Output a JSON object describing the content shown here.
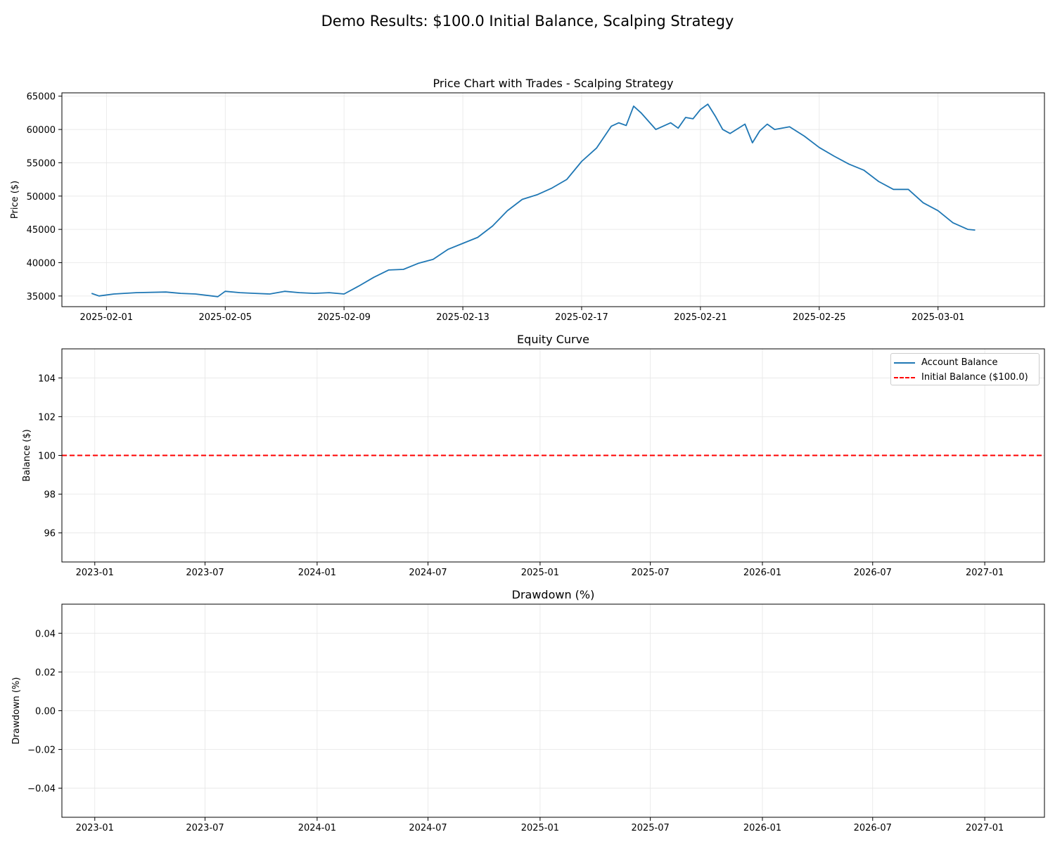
{
  "figure": {
    "suptitle": "Demo Results: $100.0 Initial Balance, Scalping Strategy"
  },
  "colors": {
    "series_blue": "#1f77b4",
    "initial_red": "#ff0000",
    "grid": "#e6e6e6"
  },
  "chart_data": [
    {
      "type": "line",
      "title": "Price Chart with Trades - Scalping Strategy",
      "xlabel": "",
      "ylabel": "Price ($)",
      "x_type": "datetime",
      "xlim": [
        "2025-01-30T12:00",
        "2025-03-04T14:00"
      ],
      "ylim": [
        33400,
        65500
      ],
      "xticks": [
        "2025-02-01",
        "2025-02-05",
        "2025-02-09",
        "2025-02-13",
        "2025-02-17",
        "2025-02-21",
        "2025-02-25",
        "2025-03-01"
      ],
      "yticks": [
        35000,
        40000,
        45000,
        50000,
        55000,
        60000,
        65000
      ],
      "grid": true,
      "series": [
        {
          "name": "",
          "color": "#1f77b4",
          "x": [
            "2025-01-31T12:00",
            "2025-01-31T18:00",
            "2025-02-01T06:00",
            "2025-02-02T00:00",
            "2025-02-03T00:00",
            "2025-02-03T12:00",
            "2025-02-04T00:00",
            "2025-02-04T18:00",
            "2025-02-05T00:00",
            "2025-02-05T12:00",
            "2025-02-06T00:00",
            "2025-02-06T12:00",
            "2025-02-07T00:00",
            "2025-02-07T12:00",
            "2025-02-08T00:00",
            "2025-02-08T12:00",
            "2025-02-09T00:00",
            "2025-02-09T12:00",
            "2025-02-10T00:00",
            "2025-02-10T12:00",
            "2025-02-11T00:00",
            "2025-02-11T12:00",
            "2025-02-12T00:00",
            "2025-02-12T12:00",
            "2025-02-13T00:00",
            "2025-02-13T12:00",
            "2025-02-14T00:00",
            "2025-02-14T12:00",
            "2025-02-15T00:00",
            "2025-02-15T12:00",
            "2025-02-16T00:00",
            "2025-02-16T12:00",
            "2025-02-17T00:00",
            "2025-02-17T12:00",
            "2025-02-18T00:00",
            "2025-02-18T06:00",
            "2025-02-18T12:00",
            "2025-02-18T18:00",
            "2025-02-19T00:00",
            "2025-02-19T12:00",
            "2025-02-20T00:00",
            "2025-02-20T06:00",
            "2025-02-20T12:00",
            "2025-02-20T18:00",
            "2025-02-21T00:00",
            "2025-02-21T06:00",
            "2025-02-21T12:00",
            "2025-02-21T18:00",
            "2025-02-22T00:00",
            "2025-02-22T12:00",
            "2025-02-22T18:00",
            "2025-02-23T00:00",
            "2025-02-23T06:00",
            "2025-02-23T12:00",
            "2025-02-24T00:00",
            "2025-02-24T12:00",
            "2025-02-25T00:00",
            "2025-02-25T12:00",
            "2025-02-26T00:00",
            "2025-02-26T12:00",
            "2025-02-27T00:00",
            "2025-02-27T12:00",
            "2025-02-28T00:00",
            "2025-02-28T12:00",
            "2025-03-01T00:00",
            "2025-03-01T12:00",
            "2025-03-02T00:00",
            "2025-03-02T06:00"
          ],
          "y": [
            35400,
            35000,
            35300,
            35500,
            35600,
            35400,
            35300,
            34900,
            35700,
            35500,
            35400,
            35300,
            35700,
            35500,
            35400,
            35500,
            35300,
            36500,
            37800,
            38900,
            39000,
            39900,
            40500,
            42000,
            42900,
            43800,
            45500,
            47800,
            49500,
            50200,
            51200,
            52500,
            55200,
            57200,
            60500,
            61000,
            60600,
            63500,
            62500,
            60000,
            61000,
            60200,
            61800,
            61600,
            63000,
            63800,
            62000,
            60000,
            59400,
            60800,
            58000,
            59800,
            60800,
            60000,
            60400,
            59000,
            57300,
            56000,
            54800,
            53900,
            52200,
            51000,
            51000,
            49000,
            47800,
            46000,
            45000,
            44900
          ]
        }
      ]
    },
    {
      "type": "line",
      "title": "Equity Curve",
      "xlabel": "",
      "ylabel": "Balance ($)",
      "x_type": "datetime",
      "xlim": [
        "2022-11-08",
        "2027-04-09"
      ],
      "ylim": [
        94.5,
        105.5
      ],
      "xticks": [
        "2023-01",
        "2023-07",
        "2024-01",
        "2024-07",
        "2025-01",
        "2025-07",
        "2026-01",
        "2026-07",
        "2027-01"
      ],
      "yticks": [
        96,
        98,
        100,
        102,
        104
      ],
      "grid": true,
      "legend": "top-right",
      "series": [
        {
          "name": "Account Balance",
          "color": "#1f77b4",
          "style": "solid",
          "x": [],
          "y": []
        },
        {
          "name": "Initial Balance ($100.0)",
          "color": "#ff0000",
          "style": "dashed",
          "hline": 100
        }
      ]
    },
    {
      "type": "line",
      "title": "Drawdown (%)",
      "xlabel": "",
      "ylabel": "Drawdown (%)",
      "x_type": "datetime",
      "xlim": [
        "2022-11-08",
        "2027-04-09"
      ],
      "ylim": [
        -0.055,
        0.055
      ],
      "xticks": [
        "2023-01",
        "2023-07",
        "2024-01",
        "2024-07",
        "2025-01",
        "2025-07",
        "2026-01",
        "2026-07",
        "2027-01"
      ],
      "yticks": [
        -0.04,
        -0.02,
        0.0,
        0.02,
        0.04
      ],
      "ytick_labels": [
        "−0.04",
        "−0.02",
        "0.00",
        "0.02",
        "0.04"
      ],
      "grid": true,
      "series": []
    }
  ]
}
